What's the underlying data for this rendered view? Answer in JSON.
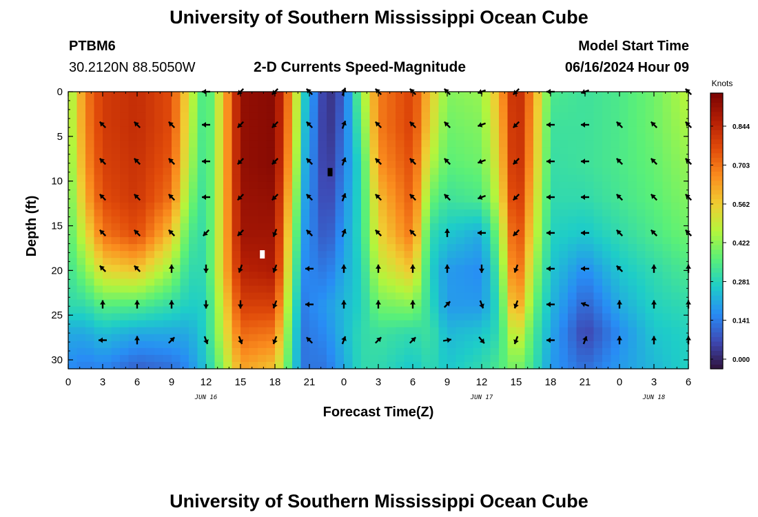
{
  "header": {
    "title": "University of Southern Mississippi Ocean Cube",
    "footer_title": "University of Southern Mississippi Ocean Cube",
    "station_id": "PTBM6",
    "station_coords": "30.2120N  88.5050W",
    "plot_title": "2-D Currents Speed-Magnitude",
    "model_start_label": "Model Start Time",
    "model_start_value": "06/16/2024 Hour 09"
  },
  "colors": {
    "frame": "#000000",
    "marker": "#ffffff",
    "marker_dark": "#000000",
    "arrow": "#000000"
  },
  "chart_data": {
    "type": "heatmap",
    "title": "2-D Currents Speed-Magnitude",
    "xlabel": "Forecast Time(Z)",
    "ylabel": "Depth (ft)",
    "xlim": [
      0,
      54
    ],
    "ylim": [
      31,
      0
    ],
    "x_ticks": [
      0,
      3,
      6,
      9,
      12,
      15,
      18,
      21,
      24,
      27,
      30,
      33,
      36,
      39,
      42,
      45,
      48,
      51,
      54
    ],
    "x_tick_labels": [
      "0",
      "3",
      "6",
      "9",
      "12",
      "15",
      "18",
      "21",
      "0",
      "3",
      "6",
      "9",
      "12",
      "15",
      "18",
      "21",
      "0",
      "3",
      "6"
    ],
    "y_ticks": [
      0,
      5,
      10,
      15,
      20,
      25,
      30
    ],
    "y_tick_labels": [
      "0",
      "5",
      "10",
      "15",
      "20",
      "25",
      "30"
    ],
    "date_labels": [
      {
        "x": 12,
        "text": "JUN 16"
      },
      {
        "x": 36,
        "text": "JUN 17"
      },
      {
        "x": 51,
        "text": "JUN 18"
      }
    ],
    "colorbar": {
      "title": "Knots",
      "vmin": 0.0,
      "vmax": 0.9,
      "tick_values": [
        0.0,
        0.141,
        0.281,
        0.422,
        0.562,
        0.703,
        0.844
      ],
      "tick_labels": [
        "0.000",
        "0.141",
        "0.281",
        "0.422",
        "0.562",
        "0.703",
        "0.844"
      ]
    },
    "speed_profiles": [
      {
        "hour": 0,
        "speeds": [
          0.4,
          0.4,
          0.38,
          0.36,
          0.34,
          0.32,
          0.3,
          0.22,
          0.18
        ]
      },
      {
        "hour": 1.5,
        "speeds": [
          0.65,
          0.64,
          0.62,
          0.58,
          0.5,
          0.4,
          0.3,
          0.22,
          0.16
        ]
      },
      {
        "hour": 3,
        "speeds": [
          0.75,
          0.75,
          0.74,
          0.72,
          0.66,
          0.52,
          0.35,
          0.25,
          0.17
        ]
      },
      {
        "hour": 6,
        "speeds": [
          0.78,
          0.78,
          0.77,
          0.76,
          0.72,
          0.55,
          0.34,
          0.22,
          0.12
        ]
      },
      {
        "hour": 9,
        "speeds": [
          0.72,
          0.72,
          0.7,
          0.66,
          0.55,
          0.42,
          0.3,
          0.22,
          0.14
        ]
      },
      {
        "hour": 10.5,
        "speeds": [
          0.5,
          0.48,
          0.45,
          0.4,
          0.34,
          0.3,
          0.27,
          0.22,
          0.18
        ]
      },
      {
        "hour": 12,
        "speeds": [
          0.3,
          0.3,
          0.3,
          0.3,
          0.3,
          0.3,
          0.28,
          0.28,
          0.26
        ]
      },
      {
        "hour": 13.5,
        "speeds": [
          0.55,
          0.55,
          0.55,
          0.55,
          0.55,
          0.55,
          0.5,
          0.48,
          0.42
        ]
      },
      {
        "hour": 15,
        "speeds": [
          0.86,
          0.86,
          0.86,
          0.85,
          0.84,
          0.8,
          0.74,
          0.68,
          0.6
        ]
      },
      {
        "hour": 18,
        "speeds": [
          0.88,
          0.88,
          0.88,
          0.86,
          0.84,
          0.82,
          0.74,
          0.66,
          0.55
        ]
      },
      {
        "hour": 19.5,
        "speeds": [
          0.6,
          0.58,
          0.55,
          0.5,
          0.45,
          0.4,
          0.35,
          0.32,
          0.3
        ]
      },
      {
        "hour": 20.5,
        "speeds": [
          0.28,
          0.26,
          0.24,
          0.22,
          0.2,
          0.18,
          0.16,
          0.15,
          0.15
        ]
      },
      {
        "hour": 22.5,
        "speeds": [
          0.04,
          0.04,
          0.05,
          0.07,
          0.1,
          0.15,
          0.2,
          0.18,
          0.15
        ]
      },
      {
        "hour": 24,
        "speeds": [
          0.12,
          0.14,
          0.16,
          0.18,
          0.2,
          0.22,
          0.24,
          0.24,
          0.22
        ]
      },
      {
        "hour": 25.5,
        "speeds": [
          0.4,
          0.35,
          0.3,
          0.3,
          0.3,
          0.28,
          0.28,
          0.3,
          0.3
        ]
      },
      {
        "hour": 27,
        "speeds": [
          0.65,
          0.65,
          0.62,
          0.56,
          0.52,
          0.46,
          0.38,
          0.32,
          0.3
        ]
      },
      {
        "hour": 30,
        "speeds": [
          0.74,
          0.74,
          0.72,
          0.7,
          0.66,
          0.55,
          0.4,
          0.3,
          0.26
        ]
      },
      {
        "hour": 31.5,
        "speeds": [
          0.55,
          0.52,
          0.46,
          0.38,
          0.3,
          0.28,
          0.3,
          0.32,
          0.3
        ]
      },
      {
        "hour": 33,
        "speeds": [
          0.4,
          0.38,
          0.36,
          0.32,
          0.26,
          0.2,
          0.2,
          0.24,
          0.26
        ]
      },
      {
        "hour": 36,
        "speeds": [
          0.42,
          0.4,
          0.38,
          0.34,
          0.22,
          0.18,
          0.2,
          0.26,
          0.3
        ]
      },
      {
        "hour": 37.5,
        "speeds": [
          0.58,
          0.55,
          0.52,
          0.48,
          0.4,
          0.34,
          0.3,
          0.3,
          0.34
        ]
      },
      {
        "hour": 39,
        "speeds": [
          0.82,
          0.82,
          0.82,
          0.8,
          0.76,
          0.72,
          0.64,
          0.52,
          0.4
        ]
      },
      {
        "hour": 40.5,
        "speeds": [
          0.62,
          0.6,
          0.58,
          0.54,
          0.5,
          0.44,
          0.38,
          0.34,
          0.32
        ]
      },
      {
        "hour": 42,
        "speeds": [
          0.34,
          0.32,
          0.31,
          0.3,
          0.28,
          0.26,
          0.24,
          0.22,
          0.2
        ]
      },
      {
        "hour": 45,
        "speeds": [
          0.32,
          0.32,
          0.32,
          0.3,
          0.26,
          0.18,
          0.12,
          0.08,
          0.14
        ]
      },
      {
        "hour": 48,
        "speeds": [
          0.34,
          0.34,
          0.34,
          0.33,
          0.3,
          0.26,
          0.22,
          0.18,
          0.2
        ]
      },
      {
        "hour": 51,
        "speeds": [
          0.38,
          0.38,
          0.37,
          0.36,
          0.34,
          0.3,
          0.28,
          0.26,
          0.24
        ]
      },
      {
        "hour": 54,
        "speeds": [
          0.46,
          0.44,
          0.42,
          0.4,
          0.38,
          0.34,
          0.3,
          0.28,
          0.28
        ]
      }
    ],
    "profile_depths": [
      0,
      4,
      8,
      12,
      16,
      20,
      24,
      27,
      31
    ],
    "vector_depths": [
      0,
      3.7,
      7.8,
      11.8,
      15.8,
      19.8,
      23.8,
      27.8
    ],
    "vectors": [
      {
        "hour": 3,
        "angles": [
          null,
          315,
          315,
          315,
          315,
          315,
          0,
          270
        ]
      },
      {
        "hour": 6,
        "angles": [
          null,
          315,
          315,
          315,
          315,
          315,
          0,
          0
        ]
      },
      {
        "hour": 9,
        "angles": [
          null,
          315,
          315,
          315,
          315,
          0,
          0,
          45
        ]
      },
      {
        "hour": 12,
        "angles": [
          270,
          270,
          270,
          270,
          225,
          180,
          180,
          160
        ]
      },
      {
        "hour": 15,
        "angles": [
          225,
          225,
          225,
          225,
          225,
          200,
          180,
          160
        ]
      },
      {
        "hour": 18,
        "angles": [
          225,
          225,
          225,
          225,
          200,
          200,
          200,
          200
        ]
      },
      {
        "hour": 21,
        "angles": [
          315,
          315,
          315,
          315,
          315,
          270,
          270,
          315
        ]
      },
      {
        "hour": 24,
        "angles": [
          20,
          20,
          20,
          20,
          20,
          0,
          0,
          20
        ]
      },
      {
        "hour": 27,
        "angles": [
          315,
          315,
          315,
          315,
          315,
          0,
          0,
          45
        ]
      },
      {
        "hour": 30,
        "angles": [
          315,
          315,
          315,
          315,
          315,
          0,
          0,
          45
        ]
      },
      {
        "hour": 33,
        "angles": [
          315,
          315,
          315,
          315,
          0,
          0,
          45,
          80
        ]
      },
      {
        "hour": 36,
        "angles": [
          250,
          250,
          250,
          250,
          270,
          180,
          160,
          140
        ]
      },
      {
        "hour": 39,
        "angles": [
          225,
          225,
          225,
          225,
          225,
          200,
          200,
          200
        ]
      },
      {
        "hour": 42,
        "angles": [
          270,
          270,
          270,
          270,
          270,
          270,
          270,
          270
        ]
      },
      {
        "hour": 45,
        "angles": [
          250,
          270,
          270,
          270,
          270,
          270,
          290,
          20
        ]
      },
      {
        "hour": 48,
        "angles": [
          null,
          315,
          315,
          315,
          315,
          315,
          0,
          0
        ]
      },
      {
        "hour": 51,
        "angles": [
          null,
          315,
          315,
          315,
          315,
          0,
          0,
          0
        ]
      },
      {
        "hour": 54,
        "angles": [
          315,
          315,
          315,
          315,
          315,
          0,
          0,
          0
        ]
      }
    ],
    "markers": [
      {
        "hour": 16.9,
        "depth": 18.2,
        "color": "white"
      },
      {
        "hour": 22.8,
        "depth": 9.0,
        "color": "black"
      }
    ]
  }
}
